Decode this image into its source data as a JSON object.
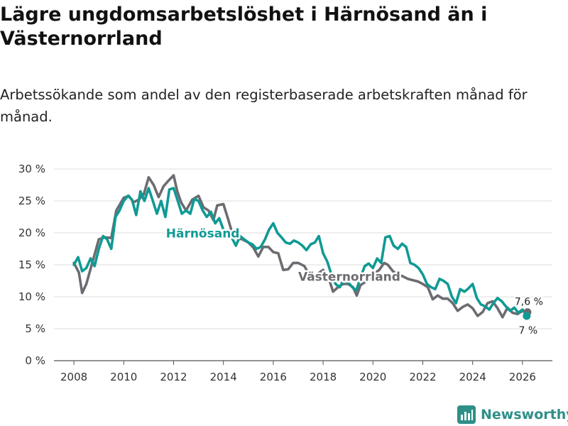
{
  "title": "Lägre ungdomsarbetslöshet i Härnösand än i Västernorrland",
  "subtitle": "Arbetssökande som andel av den registerbaserade arbetskraften månad för månad.",
  "brand": "Newsworthy",
  "colors": {
    "harnosand": "#0f9a94",
    "vasternorrland": "#6d6b71",
    "grid": "#dddddd",
    "axis": "#555555",
    "brand": "#2e8f88"
  },
  "chart_data": {
    "type": "line",
    "x_ticks": [
      2008,
      2010,
      2012,
      2014,
      2016,
      2018,
      2020,
      2022,
      2024,
      2026
    ],
    "y_ticks": [
      0,
      5,
      10,
      15,
      20,
      25,
      30
    ],
    "y_tick_labels": [
      "0 %",
      "5 %",
      "10 %",
      "15 %",
      "20 %",
      "25 %",
      "30 %"
    ],
    "xlim": [
      2007.2,
      2027.2
    ],
    "ylim": [
      0,
      30
    ],
    "grid": true,
    "series": [
      {
        "name": "Västernorrland",
        "label": "Västernorrland",
        "end_label": "7,6 %",
        "end_value": 7.6,
        "points": [
          [
            2008.0,
            15.3
          ],
          [
            2008.2,
            13.8
          ],
          [
            2008.33,
            10.6
          ],
          [
            2008.5,
            12.0
          ],
          [
            2008.75,
            15.5
          ],
          [
            2009.0,
            19.0
          ],
          [
            2009.25,
            19.3
          ],
          [
            2009.5,
            19.2
          ],
          [
            2009.7,
            23.5
          ],
          [
            2010.0,
            25.5
          ],
          [
            2010.2,
            25.8
          ],
          [
            2010.4,
            24.8
          ],
          [
            2010.6,
            25.2
          ],
          [
            2010.8,
            26.0
          ],
          [
            2011.0,
            28.7
          ],
          [
            2011.2,
            27.5
          ],
          [
            2011.4,
            25.6
          ],
          [
            2011.6,
            27.3
          ],
          [
            2011.8,
            28.2
          ],
          [
            2012.0,
            29.0
          ],
          [
            2012.15,
            26.5
          ],
          [
            2012.3,
            24.8
          ],
          [
            2012.5,
            23.5
          ],
          [
            2012.75,
            25.2
          ],
          [
            2013.0,
            25.8
          ],
          [
            2013.2,
            24.0
          ],
          [
            2013.4,
            23.5
          ],
          [
            2013.6,
            22.0
          ],
          [
            2013.75,
            24.3
          ],
          [
            2014.0,
            24.5
          ],
          [
            2014.2,
            22.0
          ],
          [
            2014.35,
            20.0
          ],
          [
            2014.5,
            19.2
          ],
          [
            2014.75,
            19.0
          ],
          [
            2015.0,
            18.5
          ],
          [
            2015.2,
            17.7
          ],
          [
            2015.4,
            16.3
          ],
          [
            2015.6,
            17.8
          ],
          [
            2015.8,
            17.8
          ],
          [
            2016.0,
            17.0
          ],
          [
            2016.2,
            16.8
          ],
          [
            2016.4,
            14.2
          ],
          [
            2016.6,
            14.3
          ],
          [
            2016.8,
            15.3
          ],
          [
            2017.0,
            15.3
          ],
          [
            2017.25,
            14.8
          ],
          [
            2017.5,
            13.0
          ],
          [
            2017.75,
            13.5
          ],
          [
            2018.0,
            14.2
          ],
          [
            2018.2,
            13.2
          ],
          [
            2018.4,
            10.8
          ],
          [
            2018.6,
            11.5
          ],
          [
            2018.8,
            12.0
          ],
          [
            2019.0,
            12.0
          ],
          [
            2019.2,
            11.5
          ],
          [
            2019.35,
            10.2
          ],
          [
            2019.5,
            11.8
          ],
          [
            2019.75,
            12.5
          ],
          [
            2020.0,
            13.5
          ],
          [
            2020.25,
            14.2
          ],
          [
            2020.45,
            15.3
          ],
          [
            2020.6,
            15.0
          ],
          [
            2020.8,
            14.0
          ],
          [
            2021.0,
            13.5
          ],
          [
            2021.2,
            13.2
          ],
          [
            2021.4,
            12.8
          ],
          [
            2021.6,
            12.6
          ],
          [
            2021.8,
            12.4
          ],
          [
            2022.0,
            12.0
          ],
          [
            2022.2,
            11.5
          ],
          [
            2022.4,
            9.6
          ],
          [
            2022.6,
            10.2
          ],
          [
            2022.8,
            9.7
          ],
          [
            2023.0,
            9.7
          ],
          [
            2023.2,
            9.0
          ],
          [
            2023.4,
            7.8
          ],
          [
            2023.6,
            8.4
          ],
          [
            2023.8,
            8.8
          ],
          [
            2024.0,
            8.2
          ],
          [
            2024.2,
            7.0
          ],
          [
            2024.4,
            7.6
          ],
          [
            2024.6,
            9.0
          ],
          [
            2024.8,
            9.3
          ],
          [
            2025.0,
            8.2
          ],
          [
            2025.2,
            6.8
          ],
          [
            2025.4,
            8.3
          ],
          [
            2025.6,
            7.5
          ],
          [
            2025.8,
            7.3
          ],
          [
            2026.0,
            7.8
          ],
          [
            2026.2,
            7.6
          ]
        ]
      },
      {
        "name": "Härnösand",
        "label": "Härnösand",
        "end_label": "7 %",
        "end_value": 7.0,
        "points": [
          [
            2008.0,
            15.0
          ],
          [
            2008.17,
            16.2
          ],
          [
            2008.33,
            14.0
          ],
          [
            2008.5,
            14.5
          ],
          [
            2008.67,
            16.0
          ],
          [
            2008.83,
            14.8
          ],
          [
            2009.0,
            17.5
          ],
          [
            2009.17,
            19.5
          ],
          [
            2009.33,
            19.0
          ],
          [
            2009.5,
            17.5
          ],
          [
            2009.67,
            22.5
          ],
          [
            2009.83,
            23.5
          ],
          [
            2010.0,
            25.0
          ],
          [
            2010.17,
            25.8
          ],
          [
            2010.33,
            25.2
          ],
          [
            2010.5,
            22.8
          ],
          [
            2010.67,
            26.5
          ],
          [
            2010.83,
            25.0
          ],
          [
            2011.0,
            27.0
          ],
          [
            2011.17,
            25.0
          ],
          [
            2011.33,
            23.0
          ],
          [
            2011.5,
            25.0
          ],
          [
            2011.67,
            22.5
          ],
          [
            2011.83,
            26.8
          ],
          [
            2012.0,
            27.0
          ],
          [
            2012.17,
            25.0
          ],
          [
            2012.33,
            23.0
          ],
          [
            2012.5,
            23.5
          ],
          [
            2012.67,
            23.0
          ],
          [
            2012.83,
            25.3
          ],
          [
            2013.0,
            25.0
          ],
          [
            2013.17,
            23.5
          ],
          [
            2013.33,
            22.5
          ],
          [
            2013.5,
            23.3
          ],
          [
            2013.67,
            21.5
          ],
          [
            2013.83,
            22.3
          ],
          [
            2014.0,
            20.5
          ],
          [
            2014.17,
            19.8
          ],
          [
            2014.33,
            19.3
          ],
          [
            2014.5,
            18.0
          ],
          [
            2014.67,
            19.5
          ],
          [
            2014.83,
            19.0
          ],
          [
            2015.0,
            18.5
          ],
          [
            2015.17,
            18.2
          ],
          [
            2015.33,
            17.5
          ],
          [
            2015.5,
            17.8
          ],
          [
            2015.67,
            19.0
          ],
          [
            2015.83,
            20.5
          ],
          [
            2016.0,
            21.5
          ],
          [
            2016.17,
            20.0
          ],
          [
            2016.33,
            19.3
          ],
          [
            2016.5,
            18.5
          ],
          [
            2016.67,
            18.3
          ],
          [
            2016.83,
            18.8
          ],
          [
            2017.0,
            18.5
          ],
          [
            2017.17,
            18.0
          ],
          [
            2017.33,
            17.3
          ],
          [
            2017.5,
            18.2
          ],
          [
            2017.67,
            18.5
          ],
          [
            2017.83,
            19.5
          ],
          [
            2018.0,
            16.8
          ],
          [
            2018.17,
            15.5
          ],
          [
            2018.33,
            13.5
          ],
          [
            2018.5,
            12.0
          ],
          [
            2018.67,
            11.5
          ],
          [
            2018.83,
            12.8
          ],
          [
            2019.0,
            12.3
          ],
          [
            2019.17,
            11.5
          ],
          [
            2019.33,
            11.0
          ],
          [
            2019.5,
            13.0
          ],
          [
            2019.67,
            14.8
          ],
          [
            2019.83,
            15.2
          ],
          [
            2020.0,
            14.5
          ],
          [
            2020.17,
            16.0
          ],
          [
            2020.33,
            15.3
          ],
          [
            2020.5,
            19.3
          ],
          [
            2020.67,
            19.5
          ],
          [
            2020.83,
            18.0
          ],
          [
            2021.0,
            17.5
          ],
          [
            2021.17,
            18.3
          ],
          [
            2021.33,
            17.8
          ],
          [
            2021.5,
            15.3
          ],
          [
            2021.67,
            15.0
          ],
          [
            2021.83,
            14.5
          ],
          [
            2022.0,
            13.5
          ],
          [
            2022.17,
            12.0
          ],
          [
            2022.33,
            11.5
          ],
          [
            2022.5,
            11.2
          ],
          [
            2022.67,
            12.8
          ],
          [
            2022.83,
            12.5
          ],
          [
            2023.0,
            12.0
          ],
          [
            2023.17,
            10.0
          ],
          [
            2023.33,
            9.0
          ],
          [
            2023.5,
            11.2
          ],
          [
            2023.67,
            10.8
          ],
          [
            2023.83,
            11.3
          ],
          [
            2024.0,
            12.0
          ],
          [
            2024.17,
            9.8
          ],
          [
            2024.33,
            8.8
          ],
          [
            2024.5,
            8.5
          ],
          [
            2024.67,
            8.0
          ],
          [
            2024.83,
            9.0
          ],
          [
            2025.0,
            9.8
          ],
          [
            2025.17,
            9.3
          ],
          [
            2025.33,
            8.5
          ],
          [
            2025.5,
            7.8
          ],
          [
            2025.67,
            8.3
          ],
          [
            2025.83,
            7.5
          ],
          [
            2026.0,
            8.0
          ],
          [
            2026.17,
            7.0
          ]
        ]
      }
    ]
  }
}
